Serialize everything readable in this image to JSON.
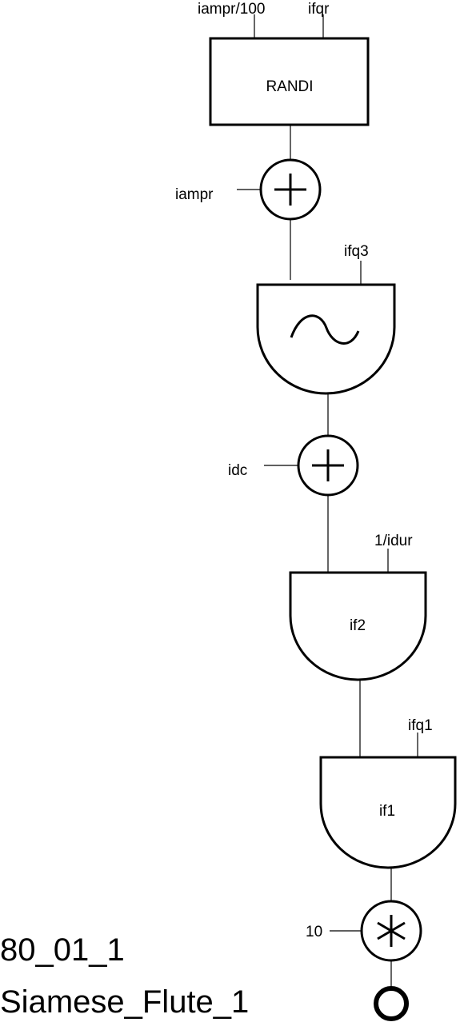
{
  "diagram": {
    "inputs": {
      "randi_amp": "iampr/100",
      "randi_freq": "ifqr",
      "adder1_in": "iampr",
      "osc_freq": "ifq3",
      "adder2_in": "idc",
      "osc2_freq": "1/idur",
      "osc3_freq": "ifq1",
      "mult_in": "10"
    },
    "units": {
      "randi": "RANDI",
      "osc2_table": "if2",
      "osc3_table": "if1"
    },
    "caption": {
      "id": "80_01_1",
      "name": "Siamese_Flute_1"
    }
  }
}
